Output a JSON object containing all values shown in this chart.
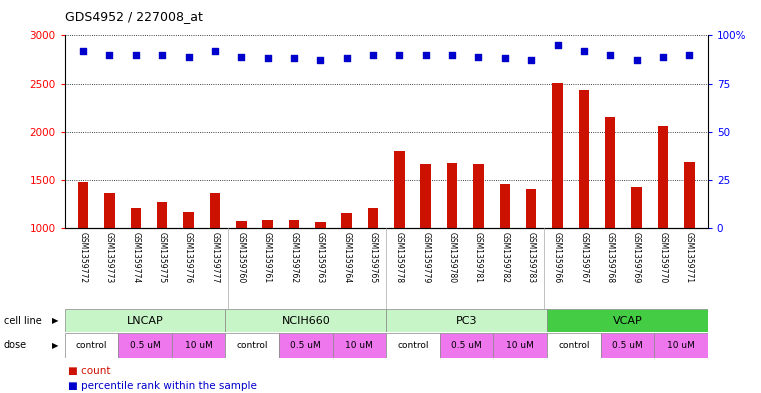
{
  "title": "GDS4952 / 227008_at",
  "samples": [
    "GSM1359772",
    "GSM1359773",
    "GSM1359774",
    "GSM1359775",
    "GSM1359776",
    "GSM1359777",
    "GSM1359760",
    "GSM1359761",
    "GSM1359762",
    "GSM1359763",
    "GSM1359764",
    "GSM1359765",
    "GSM1359778",
    "GSM1359779",
    "GSM1359780",
    "GSM1359781",
    "GSM1359782",
    "GSM1359783",
    "GSM1359766",
    "GSM1359767",
    "GSM1359768",
    "GSM1359769",
    "GSM1359770",
    "GSM1359771"
  ],
  "counts": [
    1480,
    1360,
    1210,
    1270,
    1170,
    1360,
    1075,
    1085,
    1085,
    1065,
    1160,
    1205,
    1800,
    1660,
    1670,
    1660,
    1460,
    1400,
    2510,
    2430,
    2150,
    1430,
    2060,
    1680
  ],
  "percentile_ranks": [
    92,
    90,
    90,
    90,
    89,
    92,
    89,
    88,
    88,
    87,
    88,
    90,
    90,
    90,
    90,
    89,
    88,
    87,
    95,
    92,
    90,
    87,
    89,
    90
  ],
  "cell_lines": [
    "LNCAP",
    "NCIH660",
    "PC3",
    "VCAP"
  ],
  "cell_line_ranges": [
    [
      0,
      6
    ],
    [
      6,
      12
    ],
    [
      12,
      18
    ],
    [
      18,
      24
    ]
  ],
  "cell_line_colors": [
    "#c8f5c8",
    "#c8f5c8",
    "#c8f5c8",
    "#44cc44"
  ],
  "dose_sections": [
    {
      "label": "control",
      "color": "#ffffff",
      "start": 0,
      "end": 2
    },
    {
      "label": "0.5 uM",
      "color": "#ee77ee",
      "start": 2,
      "end": 4
    },
    {
      "label": "10 uM",
      "color": "#ee77ee",
      "start": 4,
      "end": 6
    },
    {
      "label": "control",
      "color": "#ffffff",
      "start": 6,
      "end": 8
    },
    {
      "label": "0.5 uM",
      "color": "#ee77ee",
      "start": 8,
      "end": 10
    },
    {
      "label": "10 uM",
      "color": "#ee77ee",
      "start": 10,
      "end": 12
    },
    {
      "label": "control",
      "color": "#ffffff",
      "start": 12,
      "end": 14
    },
    {
      "label": "0.5 uM",
      "color": "#ee77ee",
      "start": 14,
      "end": 16
    },
    {
      "label": "10 uM",
      "color": "#ee77ee",
      "start": 16,
      "end": 18
    },
    {
      "label": "control",
      "color": "#ffffff",
      "start": 18,
      "end": 20
    },
    {
      "label": "0.5 uM",
      "color": "#ee77ee",
      "start": 20,
      "end": 22
    },
    {
      "label": "10 uM",
      "color": "#ee77ee",
      "start": 22,
      "end": 24
    }
  ],
  "bar_color": "#cc1100",
  "dot_color": "#0000cc",
  "ylim_left": [
    1000,
    3000
  ],
  "ylim_right": [
    0,
    100
  ],
  "yticks_left": [
    1000,
    1500,
    2000,
    2500,
    3000
  ],
  "yticks_right": [
    0,
    25,
    50,
    75,
    100
  ],
  "background_color": "#ffffff",
  "xlabel_bg": "#d8d8d8"
}
